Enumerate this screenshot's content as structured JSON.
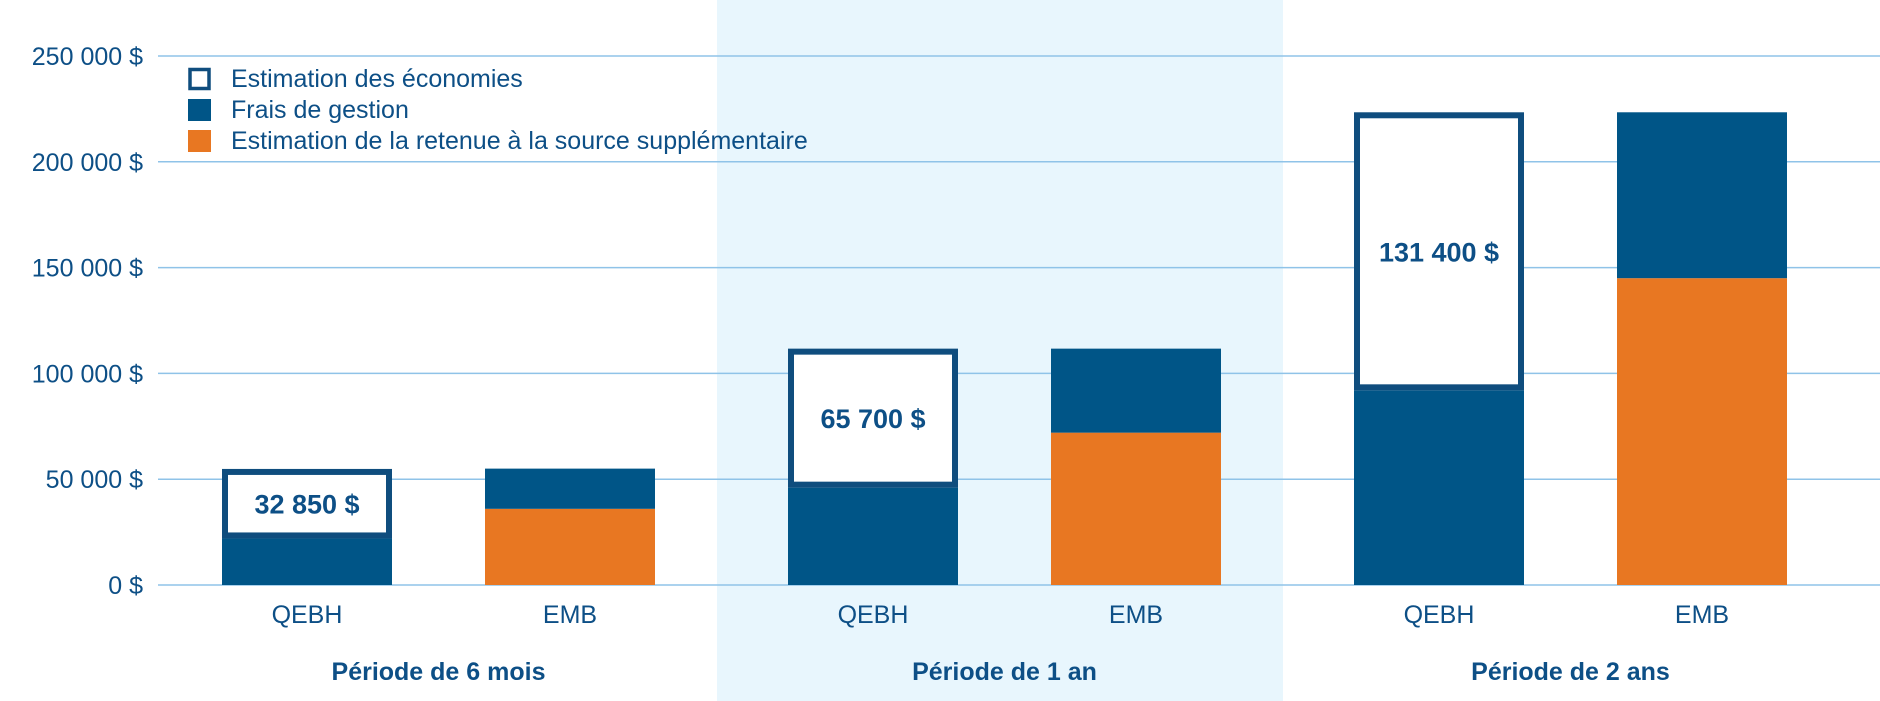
{
  "chart_data": {
    "type": "bar",
    "stacked": true,
    "colors": {
      "frais": "#005587",
      "retenue": "#e87722",
      "savings_outline": "#0f4d7e",
      "band": "#e8f6fd",
      "grid": "#8fc3e8",
      "text": "#0d4f86"
    },
    "legend": {
      "placement": "top-left",
      "items": [
        {
          "label": "Estimation des économies",
          "icon": "outline-square"
        },
        {
          "label": "Frais de gestion",
          "icon": "filled-square-blue"
        },
        {
          "label": "Estimation de la retenue à la source supplémentaire",
          "icon": "filled-square-orange"
        }
      ]
    },
    "ylim": [
      0,
      250000
    ],
    "y_ticks": [
      {
        "value": 0,
        "label": "0 $"
      },
      {
        "value": 50000,
        "label": "50 000 $"
      },
      {
        "value": 100000,
        "label": "100 000 $"
      },
      {
        "value": 150000,
        "label": "150 000 $"
      },
      {
        "value": 200000,
        "label": "200 000 $"
      },
      {
        "value": 250000,
        "label": "250 000 $"
      }
    ],
    "grid": true,
    "groups": [
      {
        "label": "Période de 6 mois",
        "shaded": false,
        "bars": [
          {
            "category": "QEBH",
            "frais": 22000,
            "retenue": 0,
            "savings": 32850,
            "savings_label": "32 850 $"
          },
          {
            "category": "EMB",
            "frais": 19000,
            "retenue": 36000,
            "savings": 0,
            "savings_label": ""
          }
        ]
      },
      {
        "label": "Période de 1 an",
        "shaded": true,
        "bars": [
          {
            "category": "QEBH",
            "frais": 46000,
            "retenue": 0,
            "savings": 65700,
            "savings_label": "65 700 $"
          },
          {
            "category": "EMB",
            "frais": 39700,
            "retenue": 72000,
            "savings": 0,
            "savings_label": ""
          }
        ]
      },
      {
        "label": "Période de 2 ans",
        "shaded": false,
        "bars": [
          {
            "category": "QEBH",
            "frais": 92000,
            "retenue": 0,
            "savings": 131400,
            "savings_label": "131 400 $"
          },
          {
            "category": "EMB",
            "frais": 78400,
            "retenue": 145000,
            "savings": 0,
            "savings_label": ""
          }
        ]
      }
    ]
  }
}
